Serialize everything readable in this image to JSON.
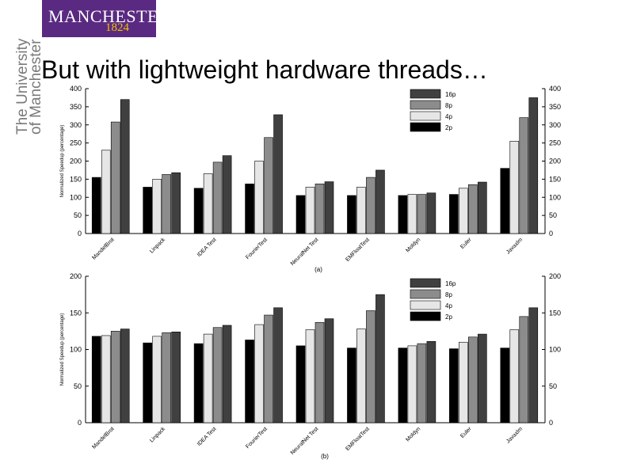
{
  "slide": {
    "logo_name": "MANCHESTER",
    "logo_year": "1824",
    "university_line1": "The University",
    "university_line2": "of Manchester",
    "title": "But with lightweight hardware threads…"
  },
  "colors": {
    "logo_bg": "#5a2a82",
    "logo_text": "#ffffff",
    "logo_year": "#f2c200",
    "series_2p": "#000000",
    "series_4p": "#e6e6e6",
    "series_8p": "#8c8c8c",
    "series_16p": "#404040"
  },
  "chart_data": [
    {
      "type": "bar",
      "caption": "(a)",
      "ylabel": "Normalized Speedup (percentage)",
      "ylim": [
        0,
        400
      ],
      "yticks": [
        "0",
        "50",
        "100",
        "150",
        "200",
        "250",
        "300",
        "350",
        "400"
      ],
      "categories": [
        "MandelBrot",
        "Linpack",
        "IDEA Test",
        "FourierTest",
        "NeuralNet Test",
        "EMFloatTest",
        "Moldyn",
        "Euler",
        "Javaxlm"
      ],
      "legend": [
        "16p",
        "8p",
        "4p",
        "2p"
      ],
      "series": [
        {
          "name": "2p",
          "values": [
            155,
            128,
            125,
            137,
            105,
            105,
            105,
            108,
            180
          ]
        },
        {
          "name": "4p",
          "values": [
            230,
            150,
            165,
            200,
            128,
            128,
            108,
            125,
            255
          ]
        },
        {
          "name": "8p",
          "values": [
            308,
            163,
            197,
            265,
            137,
            155,
            108,
            135,
            320
          ]
        },
        {
          "name": "16p",
          "values": [
            370,
            168,
            215,
            328,
            143,
            175,
            112,
            142,
            375
          ]
        }
      ]
    },
    {
      "type": "bar",
      "caption": "(b)",
      "ylabel": "Normalized Speedup (percentage)",
      "ylim": [
        0,
        200
      ],
      "yticks": [
        "0",
        "50",
        "100",
        "150",
        "200"
      ],
      "categories": [
        "MandelBrot",
        "Linpack",
        "IDEA Test",
        "FourierTest",
        "NeuralNet Test",
        "EMFloatTest",
        "Moldyn",
        "Euler",
        "Javaxlm"
      ],
      "legend": [
        "16p",
        "8p",
        "4p",
        "2p"
      ],
      "series": [
        {
          "name": "2p",
          "values": [
            118,
            109,
            108,
            113,
            105,
            102,
            102,
            101,
            102
          ]
        },
        {
          "name": "4p",
          "values": [
            119,
            118,
            121,
            134,
            127,
            128,
            105,
            110,
            127
          ]
        },
        {
          "name": "8p",
          "values": [
            125,
            123,
            130,
            147,
            137,
            153,
            108,
            117,
            145
          ]
        },
        {
          "name": "16p",
          "values": [
            128,
            124,
            133,
            157,
            142,
            175,
            111,
            121,
            157
          ]
        }
      ]
    }
  ]
}
